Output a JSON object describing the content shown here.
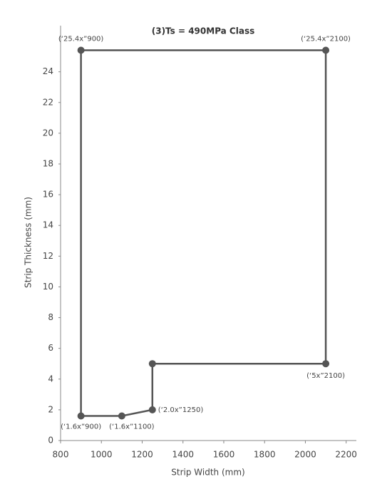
{
  "chart_data": {
    "type": "line",
    "title": "(3)Ts = 490MPa Class",
    "x_label": "Strip Width (mm)",
    "y_label": "Strip Thickness (mm)",
    "x": [
      900,
      2100,
      2100,
      1250,
      1250,
      1100,
      900
    ],
    "series": [
      {
        "color": "#555555",
        "values": [
          25.4,
          25.4,
          5,
          5,
          2.0,
          1.6,
          1.6
        ],
        "value_labels": [
          "(‘25.4x”900)",
          "(‘25.4x”2100)",
          "(‘5x”2100)",
          null,
          "(‘2.0x”1250)",
          "(‘1.6x”1100)",
          "(‘1.6x”900)"
        ]
      }
    ],
    "closed": true,
    "xlim": [
      800,
      2250
    ],
    "ylim": [
      0,
      27
    ],
    "xticks": [
      800,
      1000,
      1200,
      1400,
      1600,
      1800,
      2000,
      2200
    ],
    "yticks": [
      0,
      2,
      4,
      6,
      8,
      10,
      12,
      14,
      16,
      18,
      20,
      22,
      24
    ],
    "grid": false
  }
}
